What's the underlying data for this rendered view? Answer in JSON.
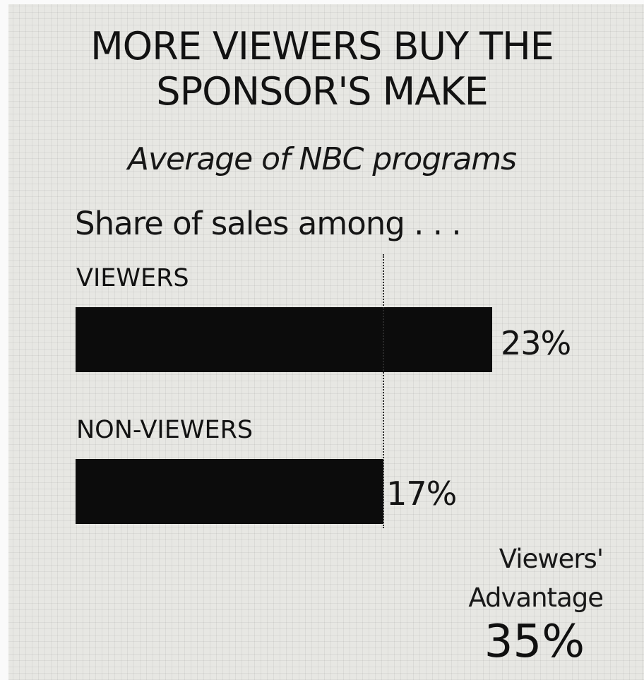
{
  "chart_data": {
    "type": "bar",
    "orientation": "horizontal",
    "title_lines": [
      "MORE VIEWERS BUY THE",
      "SPONSOR'S MAKE"
    ],
    "subtitle": "Average of NBC programs",
    "measure_label": "Share of sales among . . .",
    "categories": [
      "VIEWERS",
      "NON-VIEWERS"
    ],
    "values": [
      23,
      17
    ],
    "value_labels": [
      "23%",
      "17%"
    ],
    "unit": "%",
    "reference_line_value": 17,
    "annotation": {
      "lines": [
        "Viewers'",
        "Advantage"
      ],
      "value": "35%"
    },
    "grid": false,
    "colors": {
      "bar": "#0c0c0c",
      "background": "#e7e7e3"
    }
  }
}
